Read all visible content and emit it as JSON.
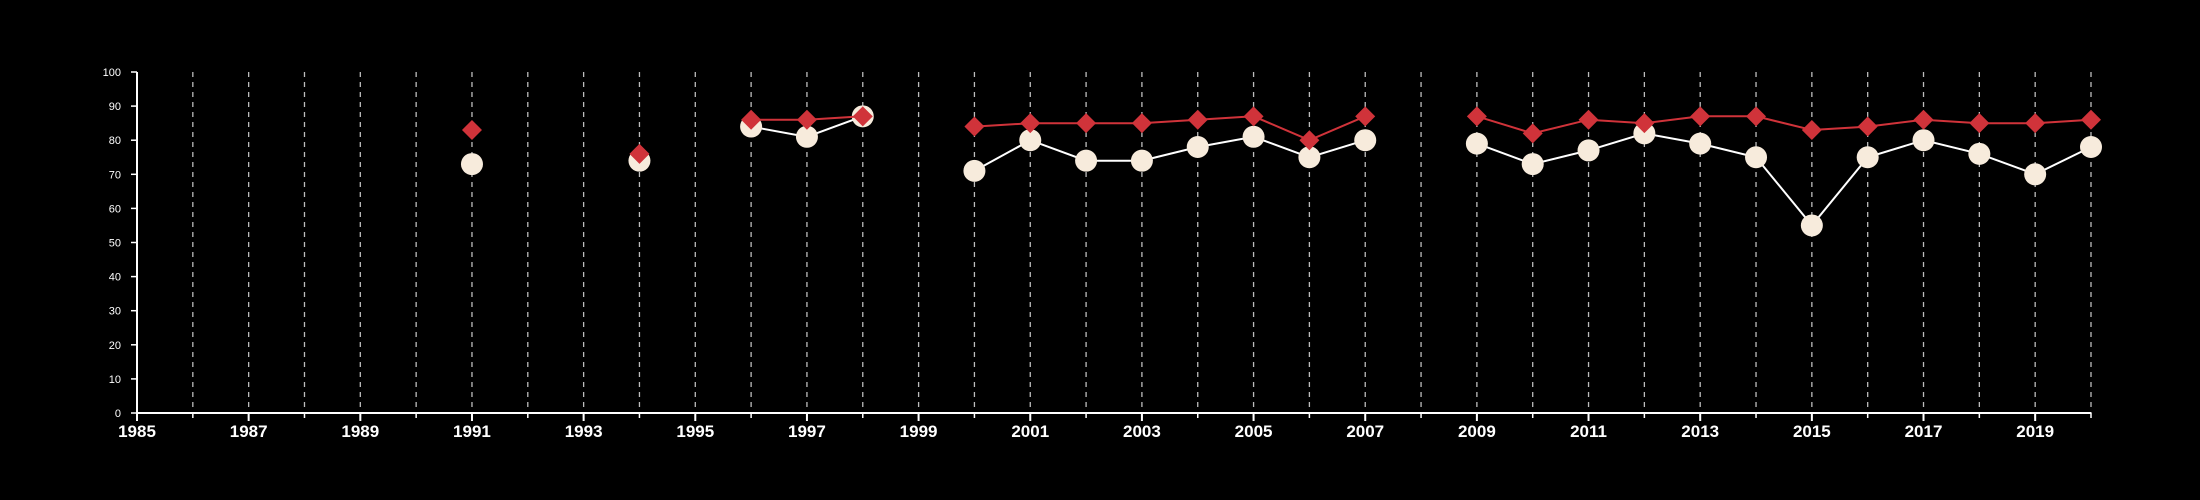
{
  "chart_data": {
    "type": "line",
    "title": "",
    "xlabel": "",
    "ylabel": "",
    "xlim": [
      1985,
      2020
    ],
    "ylim": [
      0,
      100
    ],
    "x_ticks": [
      1985,
      1987,
      1989,
      1991,
      1993,
      1995,
      1997,
      1999,
      2001,
      2003,
      2005,
      2007,
      2009,
      2011,
      2013,
      2015,
      2017,
      2019
    ],
    "y_ticks": [
      0,
      10,
      20,
      30,
      40,
      50,
      60,
      70,
      80,
      90,
      100
    ],
    "vertical_dashed_gridlines": true,
    "legend": "none",
    "series": [
      {
        "marker": "diamond",
        "color": "#d0333a",
        "points": [
          [
            1991,
            83
          ],
          [
            1994,
            76
          ],
          [
            1996,
            86
          ],
          [
            1997,
            86
          ],
          [
            1998,
            87
          ],
          [
            2000,
            84
          ],
          [
            2001,
            85
          ],
          [
            2002,
            85
          ],
          [
            2003,
            85
          ],
          [
            2004,
            86
          ],
          [
            2005,
            87
          ],
          [
            2006,
            80
          ],
          [
            2007,
            87
          ],
          [
            2009,
            87
          ],
          [
            2010,
            82
          ],
          [
            2011,
            86
          ],
          [
            2012,
            85
          ],
          [
            2013,
            87
          ],
          [
            2014,
            87
          ],
          [
            2015,
            83
          ],
          [
            2016,
            84
          ],
          [
            2017,
            86
          ],
          [
            2018,
            85
          ],
          [
            2019,
            85
          ],
          [
            2020,
            86
          ]
        ]
      },
      {
        "marker": "circle",
        "color": "#f7ebdc",
        "line_color": "#ffffff",
        "points": [
          [
            1991,
            73
          ],
          [
            1994,
            74
          ],
          [
            1996,
            84
          ],
          [
            1997,
            81
          ],
          [
            1998,
            87
          ],
          [
            2000,
            71
          ],
          [
            2001,
            80
          ],
          [
            2002,
            74
          ],
          [
            2003,
            74
          ],
          [
            2004,
            78
          ],
          [
            2005,
            81
          ],
          [
            2006,
            75
          ],
          [
            2007,
            80
          ],
          [
            2009,
            79
          ],
          [
            2010,
            73
          ],
          [
            2011,
            77
          ],
          [
            2012,
            82
          ],
          [
            2013,
            79
          ],
          [
            2014,
            75
          ],
          [
            2015,
            55
          ],
          [
            2016,
            75
          ],
          [
            2017,
            80
          ],
          [
            2018,
            76
          ],
          [
            2019,
            70
          ],
          [
            2020,
            78
          ]
        ]
      }
    ]
  }
}
